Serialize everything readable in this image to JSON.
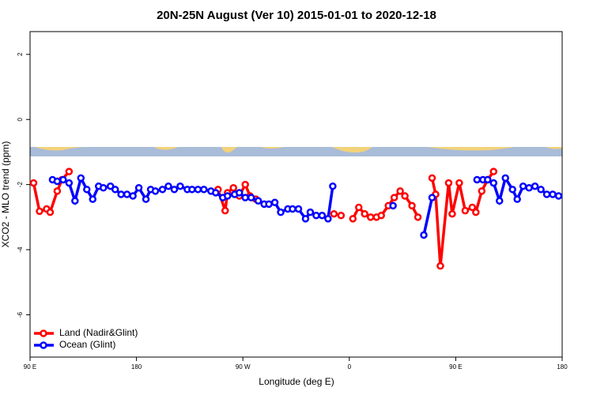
{
  "chart_data": {
    "type": "line",
    "title": "20N-25N August (Ver 10)   2015-01-01 to 2020-12-18",
    "x_label": "Longitude (deg E)",
    "y_label": "XCO2 - MLO trend (ppm)",
    "xlim": [
      90,
      540
    ],
    "ylim": [
      -7.3,
      2.7
    ],
    "xticks": [
      {
        "value": 90,
        "label": "90 E"
      },
      180,
      {
        "value": 270,
        "label": "90 W"
      },
      {
        "value": 360,
        "label": "0"
      },
      {
        "value": 450,
        "label": "90 E"
      },
      {
        "value": 540,
        "label": "180"
      }
    ],
    "yticks": [
      2,
      0,
      -2,
      -4,
      -6
    ],
    "legend": "bottom-left",
    "series": [
      {
        "name": "Land (Nadir&Glint)",
        "color": "#ff0000",
        "x": [
          93,
          98,
          104,
          107,
          113,
          117,
          123,
          null,
          249,
          255,
          257,
          262,
          267,
          272,
          276,
          281,
          null,
          347,
          353,
          null,
          363,
          368,
          373,
          378,
          383,
          387,
          393,
          398,
          403,
          407,
          413,
          418,
          null,
          430,
          433,
          437,
          444,
          447,
          453,
          458,
          464,
          467,
          472,
          477,
          482
        ],
        "values": [
          -1.95,
          -2.82,
          -2.75,
          -2.85,
          -2.2,
          -1.85,
          -1.6,
          null,
          -2.15,
          -2.8,
          -2.25,
          -2.1,
          -2.35,
          -2.0,
          -2.35,
          -2.45,
          null,
          -2.9,
          -2.95,
          null,
          -3.05,
          -2.7,
          -2.9,
          -3.0,
          -3.0,
          -2.95,
          -2.65,
          -2.4,
          -2.2,
          -2.35,
          -2.65,
          -3.0,
          null,
          -1.8,
          -2.3,
          -4.5,
          -1.95,
          -2.9,
          -1.95,
          -2.8,
          -2.7,
          -2.85,
          -2.2,
          -1.85,
          -1.6
        ]
      },
      {
        "name": "Ocean (Glint)",
        "color": "#0000ff",
        "x": [
          109,
          113,
          118,
          123,
          128,
          133,
          138,
          143,
          148,
          152,
          158,
          162,
          167,
          172,
          177,
          182,
          188,
          192,
          196,
          202,
          207,
          212,
          217,
          223,
          227,
          232,
          237,
          243,
          247,
          253,
          257,
          263,
          267,
          272,
          277,
          283,
          288,
          292,
          297,
          302,
          308,
          312,
          317,
          323,
          327,
          332,
          337,
          342,
          346,
          null,
          397,
          null,
          423,
          430,
          null,
          468,
          473,
          477,
          482,
          487,
          492,
          498,
          502,
          507,
          512,
          517,
          522,
          527,
          532,
          537
        ],
        "values": [
          -1.85,
          -1.9,
          -1.85,
          -1.95,
          -2.5,
          -1.8,
          -2.15,
          -2.45,
          -2.05,
          -2.1,
          -2.05,
          -2.15,
          -2.3,
          -2.3,
          -2.35,
          -2.1,
          -2.45,
          -2.15,
          -2.2,
          -2.15,
          -2.05,
          -2.15,
          -2.05,
          -2.15,
          -2.15,
          -2.15,
          -2.15,
          -2.2,
          -2.25,
          -2.4,
          -2.35,
          -2.3,
          -2.25,
          -2.4,
          -2.4,
          -2.5,
          -2.6,
          -2.6,
          -2.55,
          -2.85,
          -2.75,
          -2.75,
          -2.75,
          -3.05,
          -2.85,
          -2.95,
          -2.95,
          -3.05,
          -2.05,
          null,
          -2.65,
          null,
          -3.55,
          -2.4,
          null,
          -1.85,
          -1.85,
          -1.85,
          -1.95,
          -2.5,
          -1.8,
          -2.15,
          -2.45,
          -2.05,
          -2.1,
          -2.05,
          -2.15,
          -2.3,
          -2.3,
          -2.35
        ]
      }
    ]
  }
}
